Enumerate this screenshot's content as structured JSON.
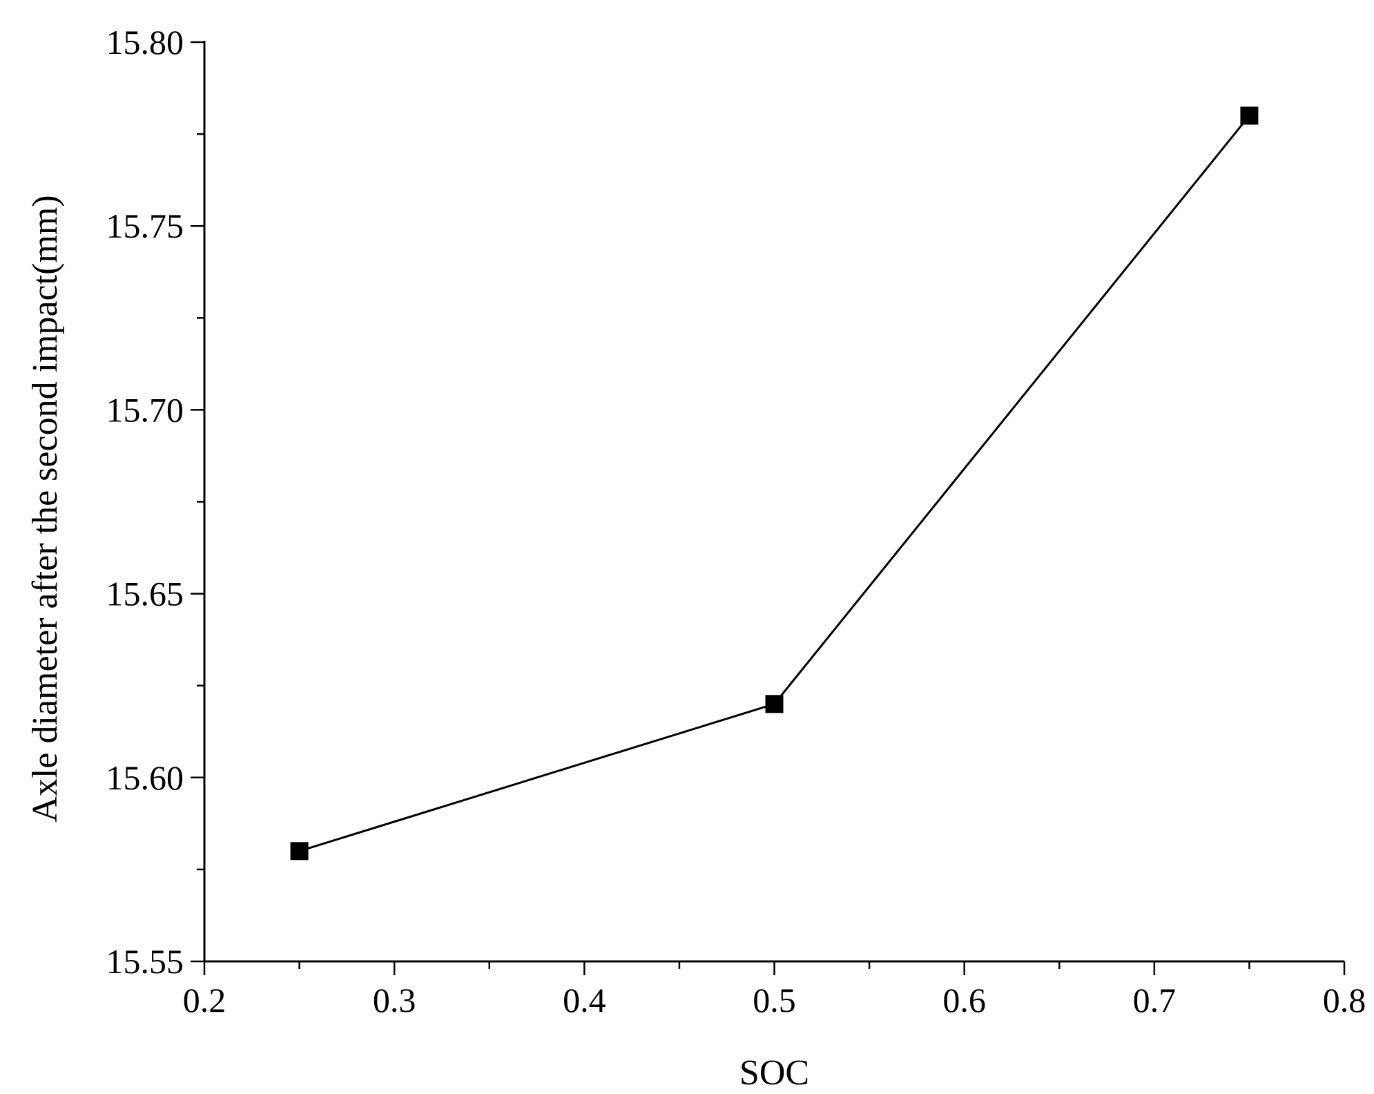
{
  "chart_data": {
    "type": "line",
    "title": "",
    "xlabel": "SOC",
    "ylabel": "Axle diameter after the second impact(mm)",
    "xlim": [
      0.2,
      0.8
    ],
    "ylim": [
      15.55,
      15.8
    ],
    "x_ticks": [
      "0.2",
      "0.3",
      "0.4",
      "0.5",
      "0.6",
      "0.7",
      "0.8"
    ],
    "y_ticks": [
      "15.55",
      "15.60",
      "15.65",
      "15.70",
      "15.75",
      "15.80"
    ],
    "grid": false,
    "series": [
      {
        "x": [
          0.25,
          0.5,
          0.75
        ],
        "values": [
          15.58,
          15.62,
          15.78
        ],
        "marker": "square",
        "color": "#000000"
      }
    ]
  }
}
